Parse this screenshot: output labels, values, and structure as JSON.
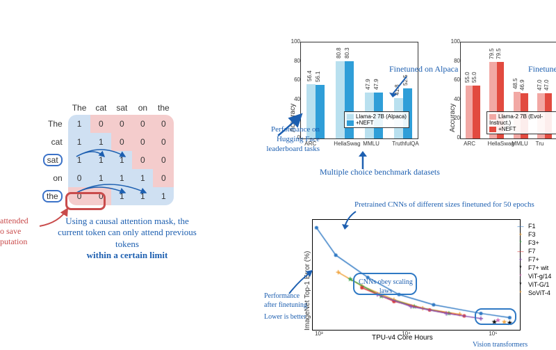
{
  "attention": {
    "col_headers": [
      "The",
      "cat",
      "sat",
      "on",
      "the"
    ],
    "row_headers": [
      "The",
      "cat",
      "sat",
      "on",
      "the"
    ],
    "circled_rows": [
      2,
      4
    ],
    "matrix": [
      [
        1,
        0,
        0,
        0,
        0
      ],
      [
        1,
        1,
        0,
        0,
        0
      ],
      [
        1,
        1,
        1,
        0,
        0
      ],
      [
        0,
        1,
        1,
        1,
        0
      ],
      [
        0,
        0,
        1,
        1,
        1
      ]
    ],
    "mask_upper": true,
    "save_cells": [
      [
        4,
        0
      ],
      [
        4,
        1
      ]
    ],
    "colors": {
      "attend": "#cfe0f2",
      "mask": "#f4cccc",
      "save": "#f4cccc",
      "row_highlight": "#3b72c8",
      "save_ring": "#c94b4b"
    },
    "caption_red": "attended\no save\nputation",
    "caption_blue_1": "Using a causal attention mask, the current token can only attend previous tokens",
    "caption_blue_2": "within a certain limit"
  },
  "bar_chart_blue": {
    "type": "bar",
    "title": "",
    "ylabel": "Accuracy",
    "ylim": [
      0,
      100
    ],
    "ytick_step": 20,
    "categories": [
      "ARC",
      "HellaSwag",
      "MMLU",
      "TruthfulQA"
    ],
    "series": [
      {
        "name": "Llama-2 7B (Alpaca)",
        "color": "#b9e0ef",
        "values": [
          56.4,
          80.8,
          47.9,
          41.8
        ]
      },
      {
        "name": "+NEFT",
        "color": "#2f9ed8",
        "values": [
          56.1,
          80.3,
          47.9,
          52.5
        ]
      }
    ],
    "annotations": {
      "finetuned": "Finetuned on Alpaca",
      "perf_hf": "Performance on Hugging Face leaderboard tasks",
      "mc": "Multiple choice benchmark datasets"
    },
    "label_fontsize": 8,
    "background_color": "#ffffff"
  },
  "bar_chart_red": {
    "type": "bar",
    "ylabel": "Accuracy",
    "ylim": [
      0,
      100
    ],
    "ytick_step": 20,
    "categories": [
      "ARC",
      "HellaSwag",
      "MMLU",
      "Tru"
    ],
    "series": [
      {
        "name": "Llama-2 7B (Evol-Instruct.)",
        "color": "#f2a8a4",
        "values": [
          55.0,
          79.5,
          48.5,
          47.0
        ]
      },
      {
        "name": "+NEFT",
        "color": "#e24a3f",
        "values": [
          55.0,
          79.5,
          46.9,
          47.0
        ]
      }
    ],
    "annotations": {
      "finetuned": "Finetuned"
    }
  },
  "line_chart": {
    "type": "scatter-line",
    "xlabel": "TPU-v4 Core Hours",
    "ylabel": "ImageNet Top-1 Error (%)",
    "xscale": "log",
    "xlim": [
      800,
      200000
    ],
    "ylim": [
      2,
      15
    ],
    "xticks": [
      1000,
      10000,
      100000
    ],
    "xtick_labels": [
      "10³",
      "10⁴",
      "10⁵"
    ],
    "series": [
      {
        "name": "F1",
        "color": "#2f79c4",
        "marker": "-",
        "points": [
          [
            900,
            14
          ],
          [
            1500,
            10.8
          ],
          [
            3500,
            8.2
          ],
          [
            8000,
            6.2
          ],
          [
            20000,
            5.0
          ],
          [
            70000,
            4.0
          ],
          [
            150000,
            3.5
          ]
        ]
      },
      {
        "name": "F3",
        "color": "#f0a23c",
        "marker": "+",
        "points": [
          [
            1600,
            8.8
          ],
          [
            3000,
            7.2
          ],
          [
            7000,
            5.6
          ],
          [
            15000,
            4.6
          ],
          [
            40000,
            3.9
          ]
        ]
      },
      {
        "name": "F3+",
        "color": "#3ea44a",
        "marker": "*",
        "points": [
          [
            2200,
            8.0
          ],
          [
            5000,
            6.0
          ],
          [
            12000,
            4.8
          ],
          [
            30000,
            4.0
          ]
        ]
      },
      {
        "name": "F7",
        "color": "#d83a3a",
        "marker": "-",
        "points": [
          [
            3000,
            7.0
          ],
          [
            7000,
            5.4
          ],
          [
            18000,
            4.4
          ],
          [
            45000,
            3.7
          ]
        ]
      },
      {
        "name": "F7+",
        "color": "#8c54b5",
        "marker": "+",
        "points": [
          [
            4500,
            6.2
          ],
          [
            11000,
            4.8
          ],
          [
            28000,
            4.0
          ],
          [
            70000,
            3.4
          ]
        ]
      },
      {
        "name": "F7+ wit",
        "color": "#000000",
        "marker": "*",
        "points": [
          [
            100000,
            3.0
          ]
        ]
      },
      {
        "name": "ViT-g/14",
        "color": "#d06ab5",
        "marker": "*",
        "points": [
          [
            110000,
            3.2
          ]
        ]
      },
      {
        "name": "ViT-G/1",
        "color": "#000000",
        "marker": "*",
        "points": [
          [
            150000,
            2.9
          ]
        ]
      },
      {
        "name": "SoViT-4",
        "color": "#f0a23c",
        "marker": "*",
        "points": [
          [
            130000,
            3.0
          ]
        ]
      }
    ],
    "annotations": {
      "pretrained": "Pretrained CNNs of different sizes finetuned for 50 epochs",
      "cnn_scaling": "CNNs obey scaling laws",
      "perf_ft": "Performance after finetuning",
      "lower": "Lower is better",
      "vit": "Vision transformers"
    },
    "highlight_ring_color": "#2f79c4"
  }
}
